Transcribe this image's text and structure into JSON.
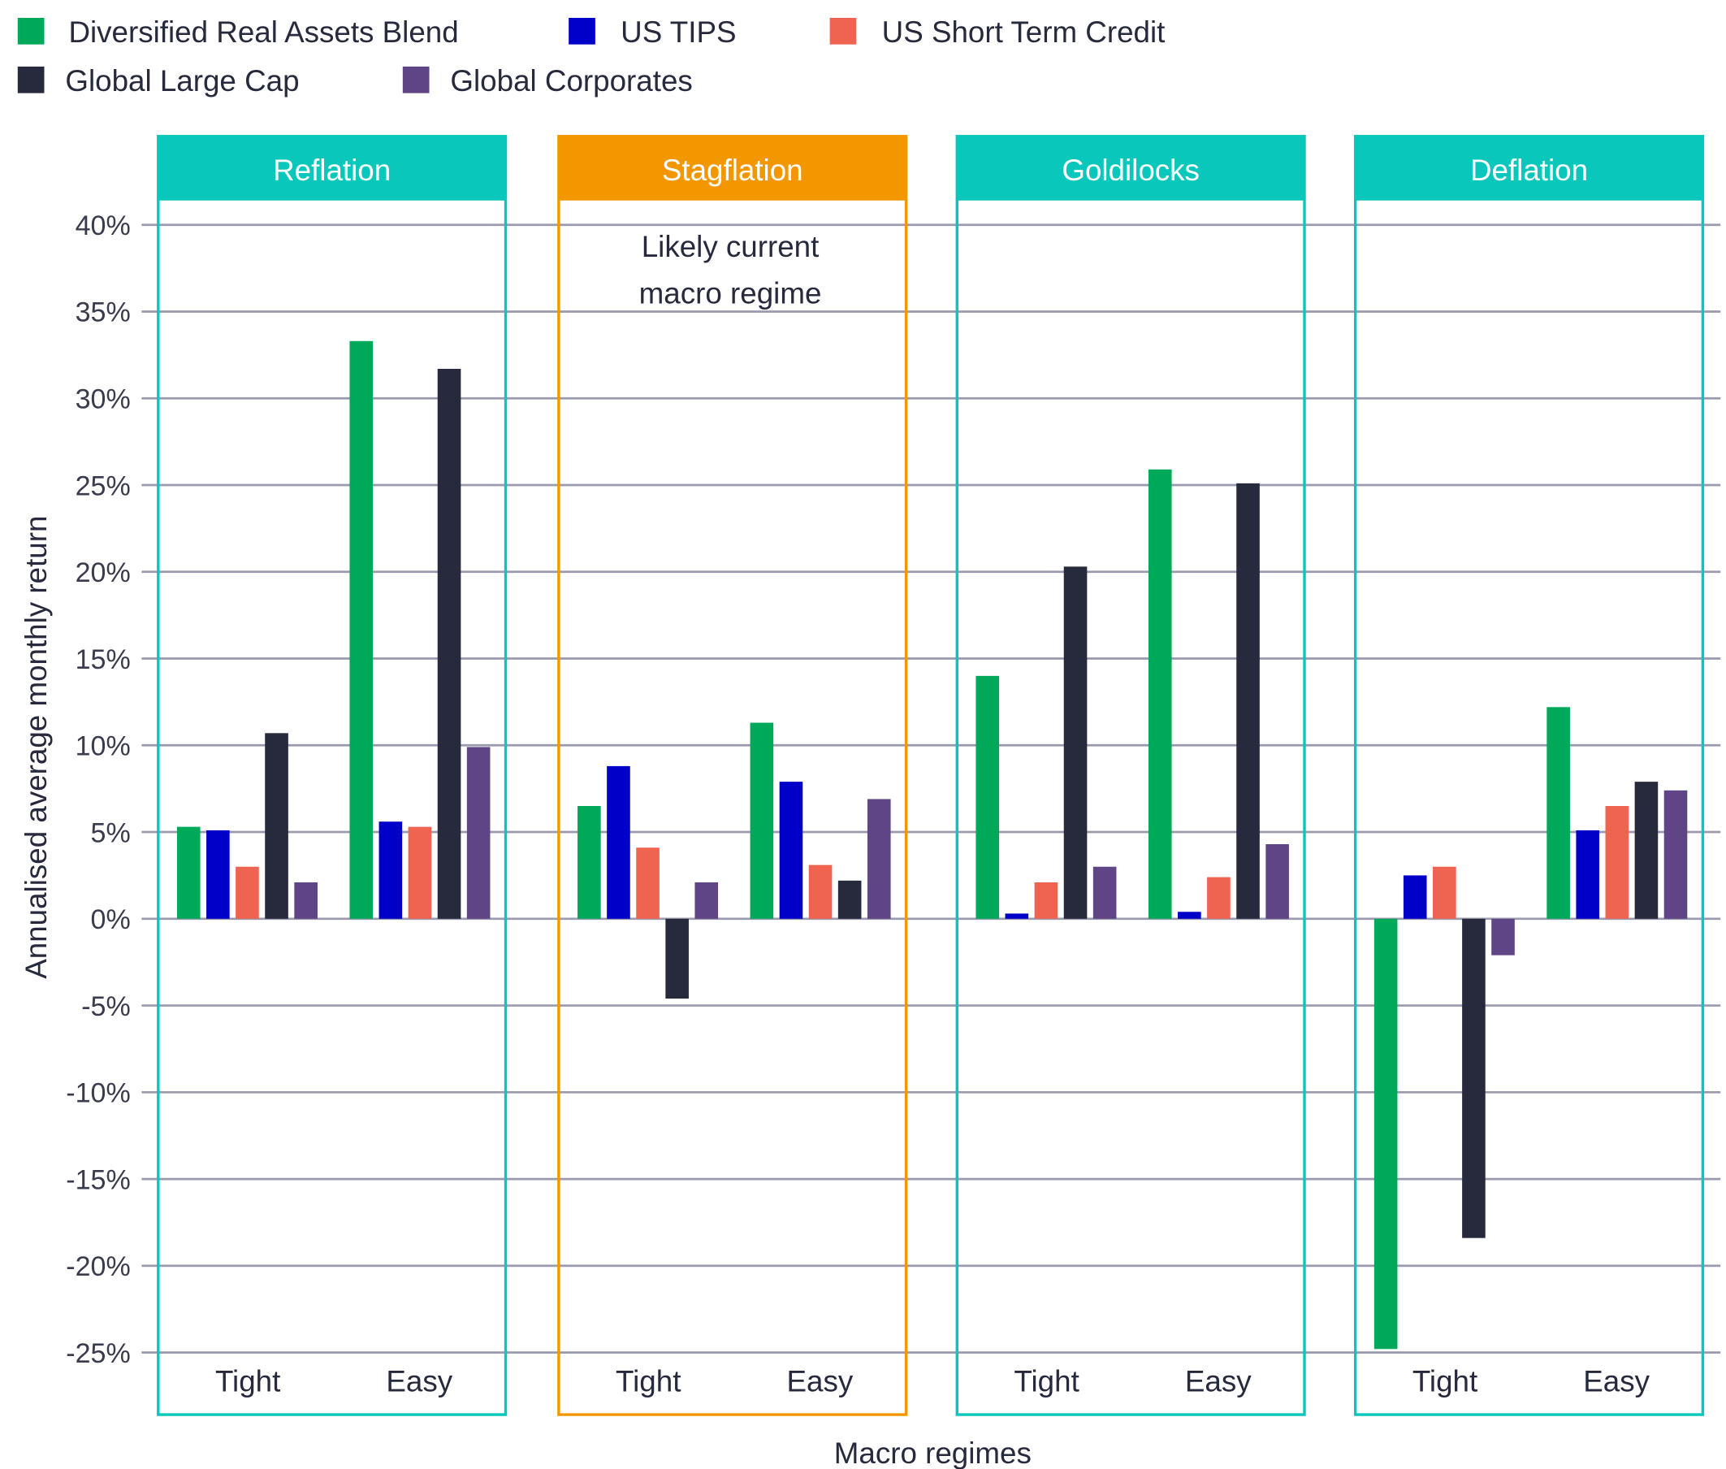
{
  "chart_data": {
    "type": "bar",
    "title": "",
    "xlabel": "Macro regimes",
    "ylabel": "Annualised average monthly return",
    "ylim": [
      -25,
      40
    ],
    "yticks": [
      "40%",
      "35%",
      "30%",
      "25%",
      "20%",
      "15%",
      "10%",
      "5%",
      "0%",
      "-5%",
      "-10%",
      "-15%",
      "-20%",
      "-25%"
    ],
    "ytick_values": [
      40,
      35,
      30,
      25,
      20,
      15,
      10,
      5,
      0,
      -5,
      -10,
      -15,
      -20,
      -25
    ],
    "grid": true,
    "legend_position": "top-left",
    "annotation": [
      "Likely current",
      "macro regime"
    ],
    "regimes": [
      {
        "name": "Reflation",
        "color": "#09c7bb"
      },
      {
        "name": "Stagflation",
        "color": "#f39700"
      },
      {
        "name": "Goldilocks",
        "color": "#09c7bb"
      },
      {
        "name": "Deflation",
        "color": "#09c7bb"
      }
    ],
    "subcategories": [
      "Tight",
      "Easy"
    ],
    "series": [
      {
        "name": "Diversified Real Assets Blend",
        "color": "#00a859",
        "values": [
          [
            5.3,
            33.3
          ],
          [
            6.5,
            11.3
          ],
          [
            14.0,
            25.9
          ],
          [
            -24.8,
            12.2
          ]
        ]
      },
      {
        "name": "US TIPS",
        "color": "#0000c8",
        "values": [
          [
            5.1,
            5.6
          ],
          [
            8.8,
            7.9
          ],
          [
            0.3,
            0.4
          ],
          [
            2.5,
            5.1
          ]
        ]
      },
      {
        "name": "US Short Term Credit",
        "color": "#ef6351",
        "values": [
          [
            3.0,
            5.3
          ],
          [
            4.1,
            3.1
          ],
          [
            2.1,
            2.4
          ],
          [
            3.0,
            6.5
          ]
        ]
      },
      {
        "name": "Global Large Cap",
        "color": "#262a3c",
        "values": [
          [
            10.7,
            31.7
          ],
          [
            -4.6,
            2.2
          ],
          [
            20.3,
            25.1
          ],
          [
            -18.4,
            7.9
          ]
        ]
      },
      {
        "name": "Global Corporates",
        "color": "#5f4585",
        "values": [
          [
            2.1,
            9.9
          ],
          [
            2.1,
            6.9
          ],
          [
            3.0,
            4.3
          ],
          [
            -2.1,
            7.4
          ]
        ]
      }
    ]
  }
}
